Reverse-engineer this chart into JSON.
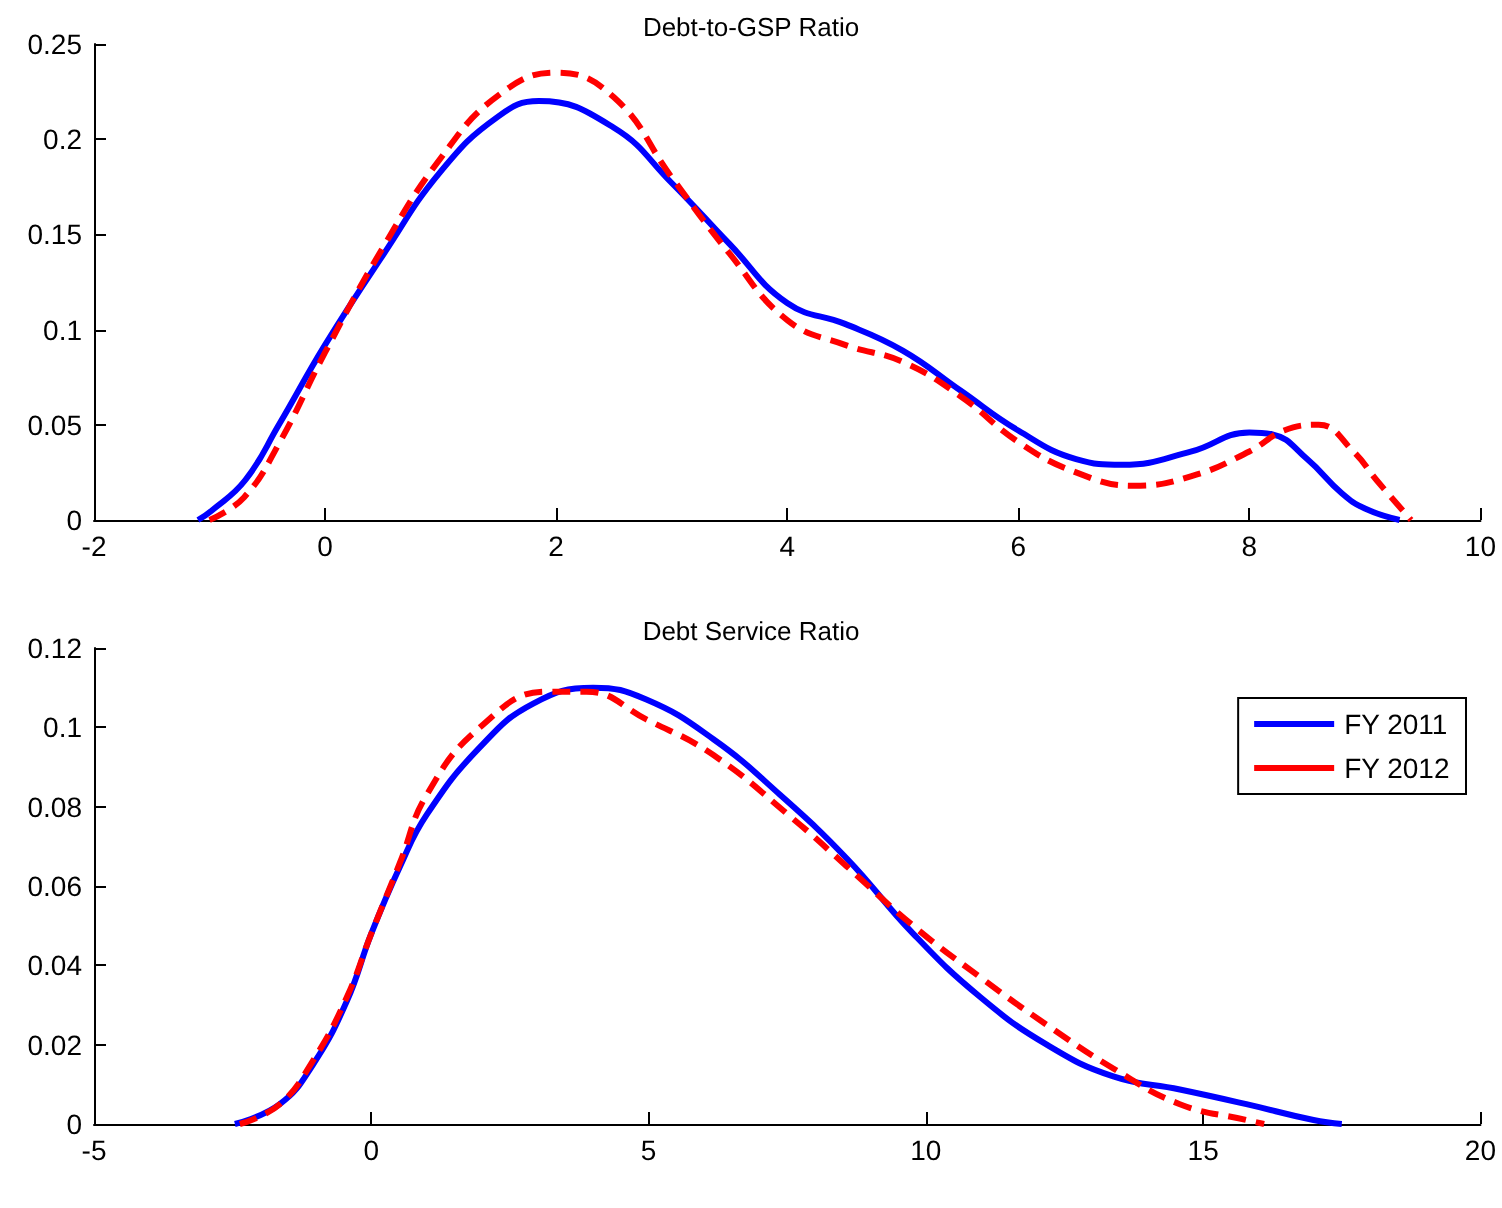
{
  "chart_data": [
    {
      "type": "line",
      "title": "Debt-to-GSP Ratio",
      "xlim": [
        -2,
        10
      ],
      "xticks": [
        -2,
        0,
        2,
        4,
        6,
        8,
        10
      ],
      "ylim": [
        0,
        0.25
      ],
      "yticks": [
        0,
        0.05,
        0.1,
        0.15,
        0.2,
        0.25
      ],
      "legend": false,
      "series": [
        {
          "color": "#0000ff",
          "line_style": "solid",
          "x": [
            -1.1,
            -0.98,
            -0.69,
            -0.4,
            0,
            0.5,
            1,
            1.5,
            1.85,
            2.5,
            3,
            3.5,
            4,
            4.5,
            5,
            5.5,
            6,
            6.5,
            6.9,
            7.5,
            8,
            8.2,
            8.5,
            8.8,
            9,
            9.3
          ],
          "values": [
            0,
            0.005,
            0.021,
            0.05,
            0.092,
            0.139,
            0.183,
            0.212,
            0.22,
            0.206,
            0.177,
            0.145,
            0.114,
            0.103,
            0.089,
            0.068,
            0.047,
            0.032,
            0.029,
            0.036,
            0.046,
            0.045,
            0.032,
            0.014,
            0.006,
            0
          ]
        },
        {
          "color": "#ff0000",
          "line_style": "dashed",
          "x": [
            -1,
            -0.7,
            -0.4,
            0,
            0.5,
            1,
            1.5,
            2,
            2.5,
            3,
            3.5,
            4,
            4.5,
            5,
            5.5,
            6,
            6.5,
            7,
            7.5,
            8,
            8.3,
            8.6,
            8.9,
            9.1,
            9.4
          ],
          "values": [
            0,
            0.012,
            0.04,
            0.088,
            0.143,
            0.19,
            0.223,
            0.235,
            0.222,
            0.18,
            0.14,
            0.105,
            0.092,
            0.083,
            0.065,
            0.041,
            0.025,
            0.018,
            0.023,
            0.036,
            0.047,
            0.05,
            0.036,
            0.021,
            0
          ]
        }
      ]
    },
    {
      "type": "line",
      "title": "Debt Service Ratio",
      "xlim": [
        -5,
        20
      ],
      "xticks": [
        -5,
        0,
        5,
        10,
        15,
        20
      ],
      "ylim": [
        0,
        0.12
      ],
      "yticks": [
        0,
        0.02,
        0.04,
        0.06,
        0.08,
        0.1,
        0.12
      ],
      "legend": "top right",
      "series": [
        {
          "name": "FY 2011",
          "color": "#0000ff",
          "line_style": "solid",
          "x": [
            -2.46,
            -1.65,
            -1.05,
            -0.44,
            0,
            0.52,
            1,
            1.96,
            2.92,
            4,
            4.96,
            6.17,
            7.37,
            8.57,
            9.77,
            10.98,
            12.18,
            13.38,
            14.58,
            15.78,
            16.99,
            17.5
          ],
          "values": [
            0,
            0.005,
            0.015,
            0.031,
            0.048,
            0.065,
            0.078,
            0.095,
            0.106,
            0.11,
            0.107,
            0.097,
            0.083,
            0.067,
            0.048,
            0.032,
            0.02,
            0.012,
            0.0087,
            0.005,
            0.001,
            0
          ]
        },
        {
          "name": "FY 2012",
          "color": "#ff0000",
          "line_style": "dashed",
          "x": [
            -2.37,
            -1.65,
            -1.05,
            -0.44,
            0,
            0.52,
            1,
            1.96,
            3.16,
            3.88,
            4.96,
            6.17,
            7.6,
            8.57,
            9.77,
            10.98,
            12.18,
            13.38,
            14.58,
            15.78,
            16.1
          ],
          "values": [
            0,
            0.005,
            0.016,
            0.032,
            0.048,
            0.066,
            0.083,
            0.1,
            0.109,
            0.109,
            0.102,
            0.093,
            0.077,
            0.065,
            0.05,
            0.037,
            0.025,
            0.014,
            0.005,
            0.001,
            0
          ]
        }
      ]
    }
  ]
}
